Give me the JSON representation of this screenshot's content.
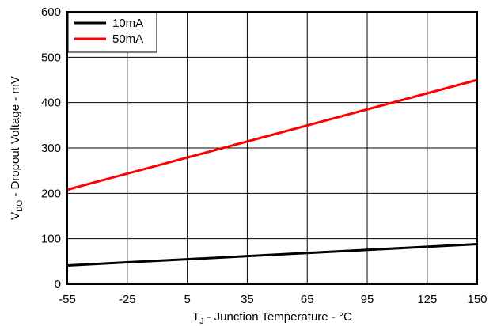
{
  "chart_data": {
    "type": "line",
    "xlabel_main": "T",
    "xlabel_sub": "J",
    "xlabel_rest": " - Junction Temperature - °C",
    "ylabel_main": "V",
    "ylabel_sub": "DO",
    "ylabel_rest": " - Dropout Voltage - mV",
    "xlim": [
      -55,
      150
    ],
    "ylim": [
      0,
      600
    ],
    "x_ticks": [
      -55,
      -25,
      5,
      35,
      65,
      95,
      125,
      150
    ],
    "y_ticks": [
      0,
      100,
      200,
      300,
      400,
      500,
      600
    ],
    "grid": true,
    "legend_position": "top-left",
    "series": [
      {
        "name": "10mA",
        "color": "#000000",
        "x": [
          -55,
          150
        ],
        "y": [
          41,
          88
        ]
      },
      {
        "name": "50mA",
        "color": "#ff0000",
        "x": [
          -55,
          150
        ],
        "y": [
          208,
          450
        ]
      }
    ]
  }
}
